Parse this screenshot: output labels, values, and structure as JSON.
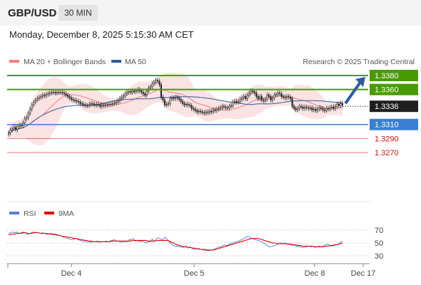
{
  "header": {
    "pair": "GBP/USD",
    "timeframe": "30 MIN"
  },
  "timestamp": "Monday, December 8, 2025 5:15:30 AM CET",
  "legend": {
    "ma20": "MA 20 + Bollinger Bands",
    "ma50": "MA 50",
    "credit": "Research © 2025 Trading Central",
    "colors": {
      "ma20": "#f08080",
      "ma50": "#2f5a9e"
    }
  },
  "rsi_legend": {
    "rsi": "RSI",
    "ma9": "9MA",
    "colors": {
      "rsi": "#5b7fd8",
      "ma9": "#e00000"
    }
  },
  "chart_data": [
    {
      "type": "line",
      "ylim": [
        1.322,
        1.34
      ],
      "x_ticks": [
        "Dec 4",
        "Dec 5",
        "Dec 8",
        "Dec 17"
      ],
      "levels": [
        {
          "value": 1.338,
          "label": "1.3380",
          "kind": "resistance",
          "color": "#4a9a06"
        },
        {
          "value": 1.336,
          "label": "1.3360",
          "kind": "resistance",
          "color": "#4a9a06"
        },
        {
          "value": 1.3336,
          "label": "1.3336",
          "kind": "current",
          "color": "#333333"
        },
        {
          "value": 1.331,
          "label": "1.3310",
          "kind": "pivot",
          "color": "#3a7fd0"
        },
        {
          "value": 1.329,
          "label": "1.3290",
          "kind": "support",
          "color": "#dd4444"
        },
        {
          "value": 1.327,
          "label": "1.3270",
          "kind": "support",
          "color": "#dd4444"
        }
      ],
      "price": [
        1.3298,
        1.3302,
        1.3304,
        1.3306,
        1.3303,
        1.3307,
        1.3309,
        1.3308,
        1.3312,
        1.3318,
        1.332,
        1.3326,
        1.3332,
        1.3338,
        1.3342,
        1.3345,
        1.3347,
        1.3349,
        1.335,
        1.3352,
        1.3351,
        1.3353,
        1.3354,
        1.3355,
        1.3356,
        1.3356,
        1.3355,
        1.3356,
        1.3356,
        1.3356,
        1.3355,
        1.3354,
        1.3352,
        1.335,
        1.3348,
        1.3346,
        1.3345,
        1.3344,
        1.3343,
        1.3342,
        1.334,
        1.3339,
        1.3338,
        1.3337,
        1.3337,
        1.3339,
        1.334,
        1.3339,
        1.3338,
        1.3339,
        1.3338,
        1.3336,
        1.3338,
        1.3337,
        1.3338,
        1.3338,
        1.3339,
        1.3339,
        1.334,
        1.3341,
        1.3342,
        1.3344,
        1.3347,
        1.3349,
        1.3351,
        1.3354,
        1.3356,
        1.3357,
        1.3356,
        1.3358,
        1.3357,
        1.3358,
        1.336,
        1.3358,
        1.3356,
        1.3354,
        1.3352,
        1.3358,
        1.3362,
        1.3364,
        1.3368,
        1.337,
        1.3373,
        1.3372,
        1.3367,
        1.3349,
        1.3345,
        1.3338,
        1.3339,
        1.334,
        1.3347,
        1.3348,
        1.3347,
        1.3349,
        1.3348,
        1.3346,
        1.3343,
        1.334,
        1.3338,
        1.3339,
        1.3338,
        1.3337,
        1.3333,
        1.3332,
        1.333,
        1.3328,
        1.3329,
        1.3328,
        1.3327,
        1.3326,
        1.3328,
        1.3327,
        1.3329,
        1.3328,
        1.3331,
        1.333,
        1.3332,
        1.3333,
        1.3334,
        1.3336,
        1.3335,
        1.3334,
        1.3334,
        1.3336,
        1.3337,
        1.3342,
        1.3343,
        1.3342,
        1.3343,
        1.3346,
        1.3348,
        1.335,
        1.3347,
        1.3352,
        1.3355,
        1.3358,
        1.3357,
        1.3355,
        1.335,
        1.3347,
        1.335,
        1.3345,
        1.3344,
        1.3346,
        1.3352,
        1.335,
        1.3345,
        1.3348,
        1.3352,
        1.3353,
        1.3355,
        1.3354,
        1.335,
        1.3349,
        1.3348,
        1.335,
        1.3349,
        1.3347,
        1.3336,
        1.3333,
        1.3331,
        1.3333,
        1.3336,
        1.3335,
        1.3333,
        1.3335,
        1.3334,
        1.3333,
        1.3334,
        1.3331,
        1.3332,
        1.333,
        1.3332,
        1.3334,
        1.3333,
        1.3331,
        1.333,
        1.3333,
        1.3332,
        1.3334,
        1.3335,
        1.3333,
        1.3336,
        1.3339,
        1.3337,
        1.334,
        1.3338
      ],
      "forecast": [
        [
          1.3336,
          1.338
        ]
      ]
    },
    {
      "type": "line",
      "ylim": [
        20,
        85
      ],
      "y_ticks": [
        70,
        50,
        30
      ],
      "rsi": [
        65,
        66,
        67,
        66,
        67,
        65,
        66,
        67,
        66,
        63,
        65,
        66,
        67,
        66,
        66,
        65,
        66,
        65,
        65,
        64,
        65,
        64,
        64,
        63,
        62,
        61,
        59,
        58,
        57,
        56,
        55,
        56,
        57,
        55,
        54,
        53,
        52,
        52,
        51,
        51,
        52,
        52,
        53,
        51,
        52,
        52,
        53,
        52,
        53,
        54,
        55,
        53,
        53,
        51,
        52,
        52,
        52,
        55,
        55,
        57,
        53,
        54,
        52,
        53,
        52,
        50,
        52,
        52,
        56,
        52,
        57,
        58,
        56,
        55,
        59,
        56,
        52,
        48,
        46,
        45,
        45,
        44,
        44,
        43,
        45,
        42,
        44,
        41,
        40,
        41,
        40,
        40,
        39,
        39,
        38,
        38,
        39,
        40,
        41,
        43,
        44,
        45,
        47,
        46,
        47,
        49,
        50,
        51,
        52,
        53,
        55,
        56,
        58,
        60,
        59,
        57,
        56,
        55,
        54,
        53,
        51,
        49,
        47,
        44,
        44,
        45,
        46,
        47,
        49,
        50,
        49,
        50,
        48,
        49,
        46,
        47,
        45,
        45,
        44,
        43,
        43,
        44,
        45,
        44,
        45,
        43,
        44,
        45,
        44,
        45,
        47,
        48,
        46,
        45,
        46,
        47,
        48,
        51,
        52
      ],
      "ma9": [
        63,
        63,
        64,
        64,
        65,
        65,
        65,
        66,
        66,
        65,
        65,
        65,
        66,
        66,
        66,
        65,
        65,
        65,
        64,
        64,
        64,
        63,
        63,
        62,
        62,
        61,
        60,
        60,
        59,
        59,
        58,
        57,
        57,
        56,
        55,
        55,
        54,
        54,
        53,
        53,
        52,
        52,
        52,
        52,
        52,
        52,
        52,
        52,
        52,
        53,
        53,
        53,
        53,
        53,
        53,
        53,
        53,
        53,
        53,
        54,
        54,
        54,
        54,
        54,
        54,
        54,
        53,
        53,
        53,
        53,
        54,
        54,
        54,
        54,
        54,
        54,
        53,
        51,
        50,
        48,
        47,
        46,
        45,
        44,
        44,
        43,
        43,
        42,
        42,
        41,
        41,
        40,
        40,
        40,
        39,
        39,
        39,
        39,
        40,
        41,
        42,
        43,
        44,
        45,
        46,
        47,
        48,
        49,
        50,
        51,
        52,
        53,
        54,
        55,
        56,
        57,
        57,
        57,
        57,
        56,
        55,
        54,
        53,
        52,
        51,
        50,
        50,
        49,
        49,
        49,
        49,
        49,
        48,
        48,
        48,
        47,
        47,
        46,
        46,
        45,
        45,
        45,
        45,
        45,
        45,
        44,
        44,
        44,
        44,
        44,
        45,
        45,
        46,
        46,
        47,
        47,
        48,
        49,
        50
      ]
    }
  ]
}
